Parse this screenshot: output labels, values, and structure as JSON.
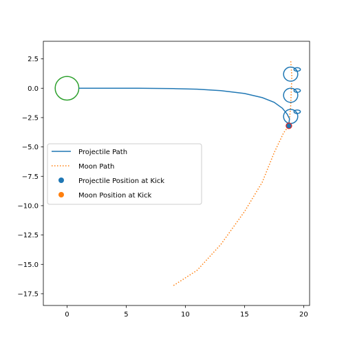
{
  "chart_data": {
    "type": "line",
    "xlim": [
      -2,
      20.5
    ],
    "ylim": [
      -18.5,
      4
    ],
    "xticks": [
      0,
      5,
      10,
      15,
      20
    ],
    "yticks": [
      2.5,
      0.0,
      -2.5,
      -5.0,
      -7.5,
      -10.0,
      -12.5,
      -15.0,
      -17.5
    ],
    "xtick_labels": [
      "0",
      "5",
      "10",
      "15",
      "20"
    ],
    "ytick_labels": [
      "2.5",
      "0.0",
      "−2.5",
      "−5.0",
      "−7.5",
      "−10.0",
      "−12.5",
      "−15.0",
      "−17.5"
    ],
    "grid": false,
    "legend_position": "center-left",
    "legend": [
      {
        "label": "Projectile Path",
        "style": "line",
        "color": "#1f77b4"
      },
      {
        "label": "Moon Path",
        "style": "dotted",
        "color": "#ff7f0e"
      },
      {
        "label": "Projectile Position at Kick",
        "style": "marker",
        "color": "#1f77b4"
      },
      {
        "label": "Moon Position at Kick",
        "style": "marker",
        "color": "#ff7f0e"
      }
    ],
    "planet": {
      "x": 0,
      "y": 0,
      "radius": 1,
      "color": "#2ca02c"
    },
    "series": [
      {
        "name": "Projectile Path",
        "color": "#1f77b4",
        "points": [
          [
            1,
            0
          ],
          [
            3,
            0
          ],
          [
            6,
            0
          ],
          [
            9,
            -0.03
          ],
          [
            11,
            -0.08
          ],
          [
            13,
            -0.2
          ],
          [
            15,
            -0.45
          ],
          [
            16.5,
            -0.8
          ],
          [
            17.5,
            -1.2
          ],
          [
            18.2,
            -1.7
          ],
          [
            18.6,
            -2.2
          ],
          [
            18.8,
            -2.6
          ],
          [
            18.75,
            -3.0
          ]
        ],
        "loop_centers": [
          [
            18.9,
            -2.4
          ],
          [
            18.9,
            -0.6
          ],
          [
            18.9,
            1.2
          ]
        ],
        "loop_radius": 0.6
      },
      {
        "name": "Moon Path",
        "color": "#ff7f0e",
        "points": [
          [
            9,
            -16.8
          ],
          [
            11,
            -15.5
          ],
          [
            13,
            -13.3
          ],
          [
            15,
            -10.5
          ],
          [
            16.5,
            -8
          ],
          [
            17.5,
            -5.5
          ],
          [
            18.3,
            -3.8
          ],
          [
            18.75,
            -3.2
          ],
          [
            18.9,
            -1.5
          ],
          [
            19,
            1
          ],
          [
            18.9,
            2.4
          ]
        ]
      }
    ],
    "kick_points": [
      {
        "name": "Moon Position at Kick",
        "x": 18.75,
        "y": -3.2,
        "color": "#ff7f0e"
      },
      {
        "name": "Projectile Position at Kick",
        "x": 18.75,
        "y": -3.2,
        "color": "#1f77b4"
      }
    ],
    "kick_marker_edge": "#d62728"
  }
}
